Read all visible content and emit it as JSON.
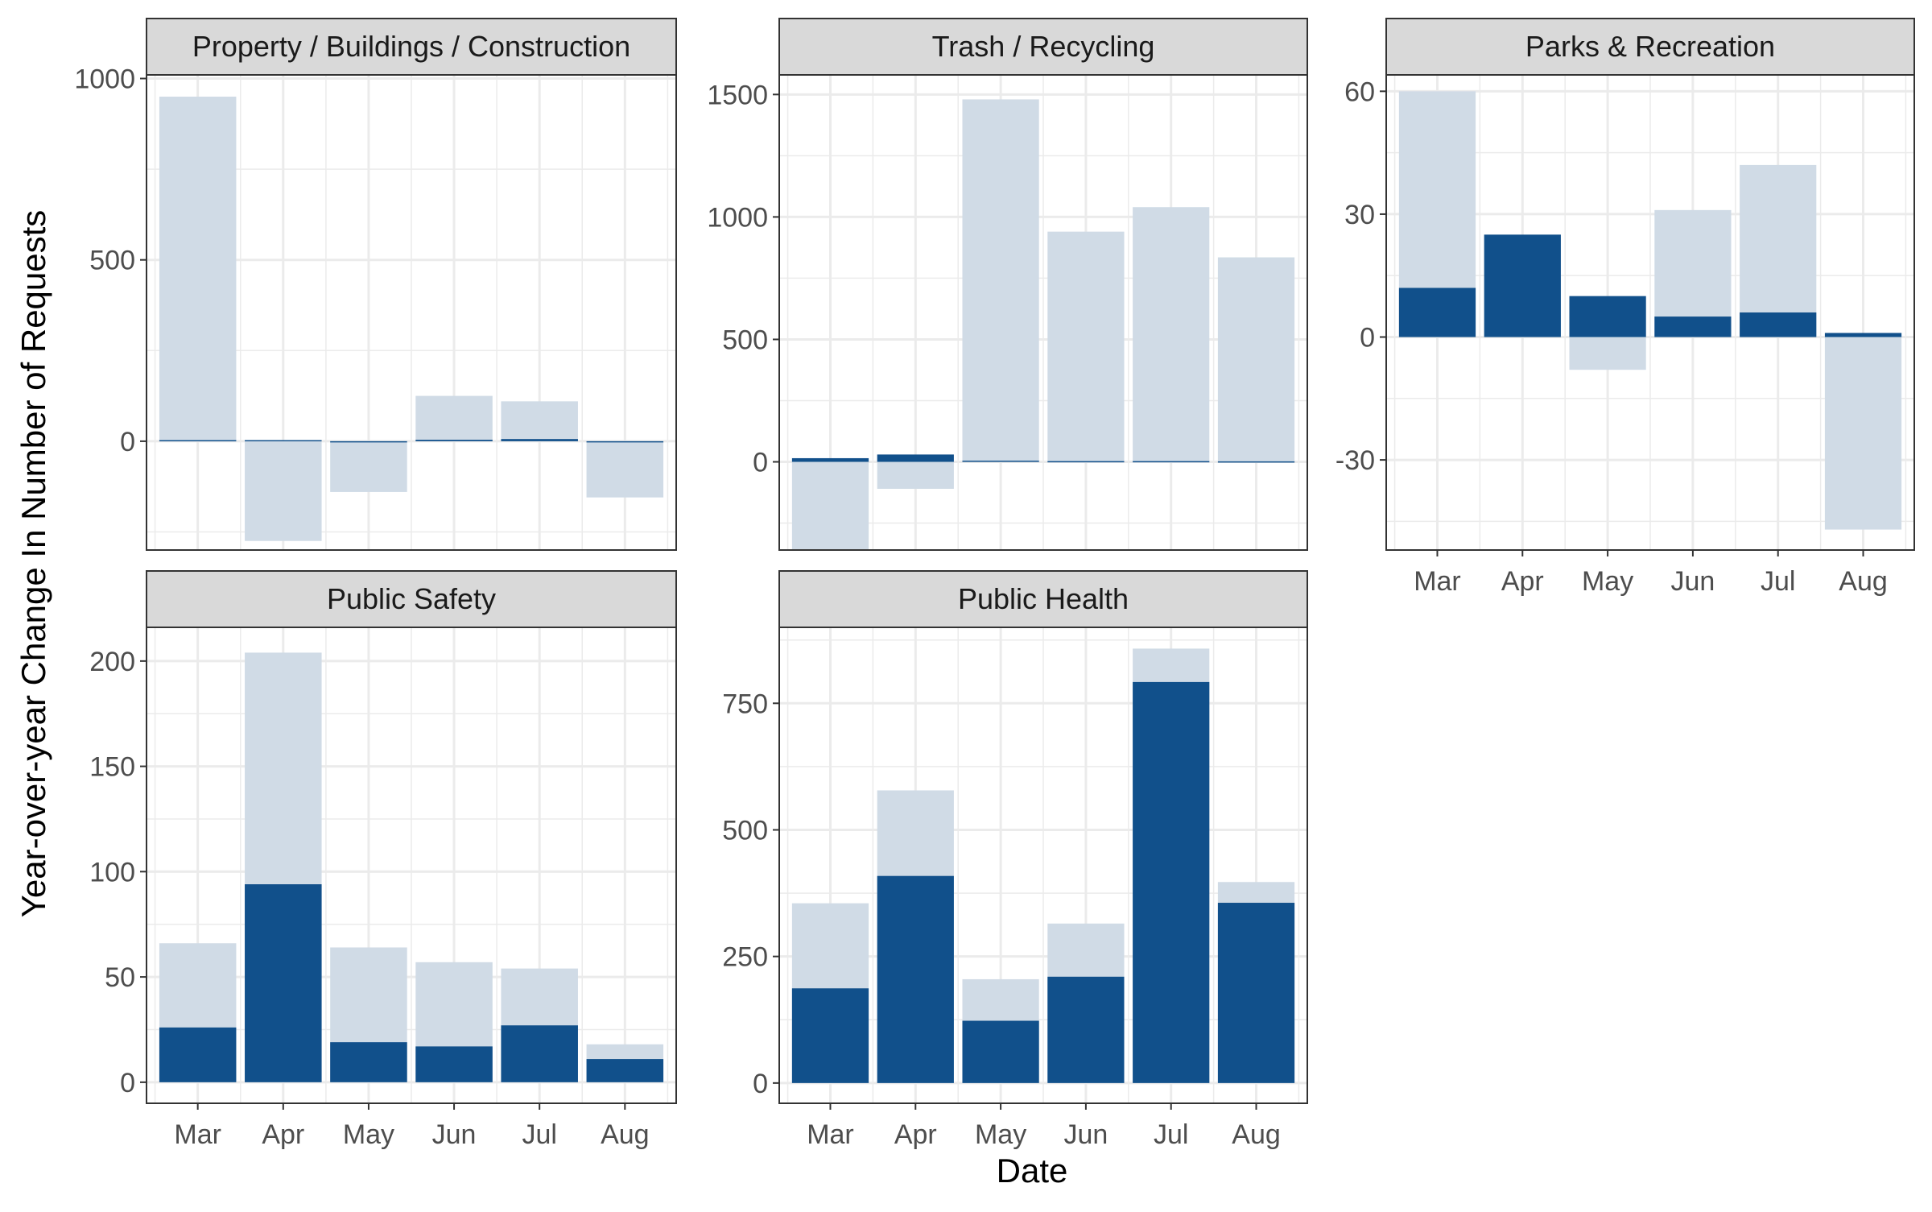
{
  "chart_data": {
    "type": "bar",
    "layout": "facet-wrap",
    "xlabel": "Date",
    "ylabel": "Year-over-year Change In Number of Requests",
    "categories": [
      "Mar",
      "Apr",
      "May",
      "Jun",
      "Jul",
      "Aug"
    ],
    "colors": {
      "light": "#d0dbe6",
      "dark": "#11508b",
      "strip": "#d9d9d9",
      "grid": "#ebebeb"
    },
    "grid": true,
    "panels": [
      {
        "title": "Property / Buildings / Construction",
        "ylim": [
          -300,
          1010
        ],
        "yticks": [
          0,
          500,
          1000
        ],
        "series": [
          {
            "values": [
              950,
              -275,
              -140,
              125,
              110,
              -155
            ]
          },
          {
            "values": [
              3,
              3,
              -2,
              4,
              6,
              -2
            ]
          }
        ]
      },
      {
        "title": "Trash / Recycling",
        "ylim": [
          -360,
          1580
        ],
        "yticks": [
          0,
          500,
          1000,
          1500
        ],
        "series": [
          {
            "values": [
              -360,
              -110,
              1480,
              940,
              1040,
              835
            ]
          },
          {
            "values": [
              15,
              30,
              5,
              3,
              3,
              2
            ]
          }
        ]
      },
      {
        "title": "Parks & Recreation",
        "ylim": [
          -52,
          64
        ],
        "yticks": [
          -30,
          0,
          30,
          60
        ],
        "series": [
          {
            "values": [
              60,
              25,
              -8,
              31,
              42,
              -47
            ]
          },
          {
            "values": [
              12,
              25,
              10,
              5,
              6,
              1
            ]
          }
        ]
      },
      {
        "title": "Public Safety",
        "ylim": [
          -10,
          216
        ],
        "yticks": [
          0,
          50,
          100,
          150,
          200
        ],
        "series": [
          {
            "values": [
              66,
              204,
              64,
              57,
              54,
              18
            ]
          },
          {
            "values": [
              26,
              94,
              19,
              17,
              27,
              11
            ]
          }
        ]
      },
      {
        "title": "Public Health",
        "ylim": [
          -40,
          900
        ],
        "yticks": [
          0,
          250,
          500,
          750
        ],
        "series": [
          {
            "values": [
              355,
              578,
              205,
              315,
              858,
              397
            ]
          },
          {
            "values": [
              187,
              409,
              123,
              210,
              792,
              356
            ]
          }
        ]
      }
    ]
  }
}
